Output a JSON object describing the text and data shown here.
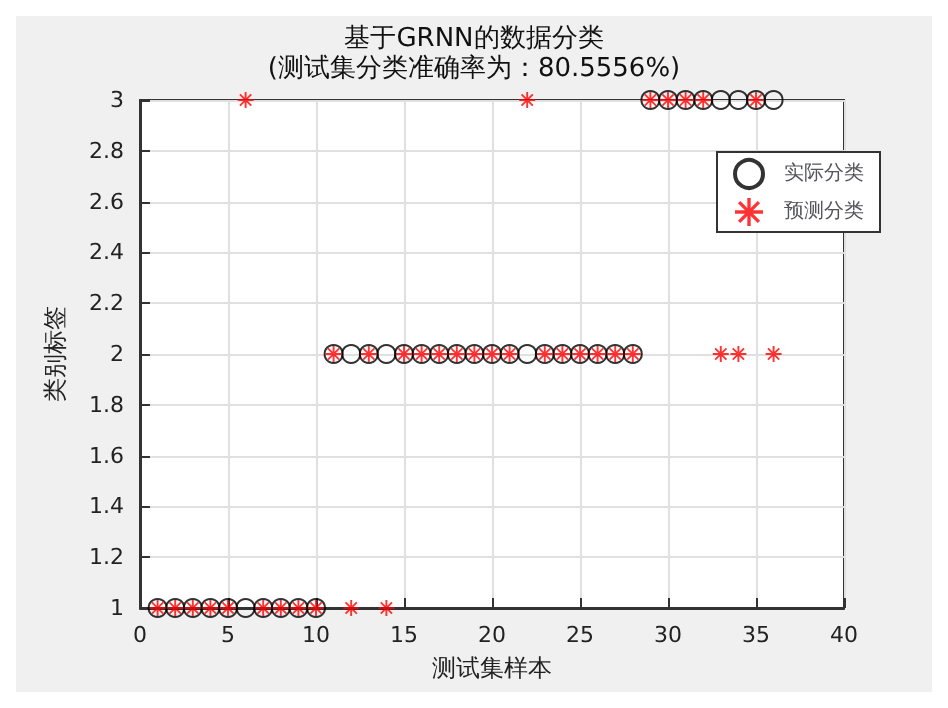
{
  "chart_data": {
    "type": "scatter",
    "title": "基于GRNN的数据分类",
    "subtitle": "(测试集分类准确率为：80.5556%)",
    "xlabel": "测试集样本",
    "ylabel": "类别标签",
    "x": [
      1,
      2,
      3,
      4,
      5,
      6,
      7,
      8,
      9,
      10,
      11,
      12,
      13,
      14,
      15,
      16,
      17,
      18,
      19,
      20,
      21,
      22,
      23,
      24,
      25,
      26,
      27,
      28,
      29,
      30,
      31,
      32,
      33,
      34,
      35,
      36
    ],
    "series": [
      {
        "name": "实际分类",
        "color": "#000000",
        "marker": "circle",
        "values": [
          1,
          1,
          1,
          1,
          1,
          1,
          1,
          1,
          1,
          1,
          2,
          2,
          2,
          2,
          2,
          2,
          2,
          2,
          2,
          2,
          2,
          2,
          2,
          2,
          2,
          2,
          2,
          2,
          3,
          3,
          3,
          3,
          3,
          3,
          3,
          3
        ]
      },
      {
        "name": "预测分类",
        "color": "#ff0000",
        "marker": "star",
        "values": [
          1,
          1,
          1,
          1,
          1,
          3,
          1,
          1,
          1,
          1,
          2,
          1,
          2,
          1,
          2,
          2,
          2,
          2,
          2,
          2,
          2,
          3,
          2,
          2,
          2,
          2,
          2,
          2,
          3,
          3,
          3,
          3,
          2,
          2,
          3,
          2
        ]
      }
    ],
    "xlim": [
      0,
      40
    ],
    "xticks": [
      0,
      5,
      10,
      15,
      20,
      25,
      30,
      35,
      40
    ],
    "ylim": [
      1,
      3
    ],
    "yticks": [
      1,
      1.2,
      1.4,
      1.6,
      1.8,
      2,
      2.2,
      2.4,
      2.6,
      2.8,
      3
    ],
    "grid": true,
    "legend": "top right"
  }
}
